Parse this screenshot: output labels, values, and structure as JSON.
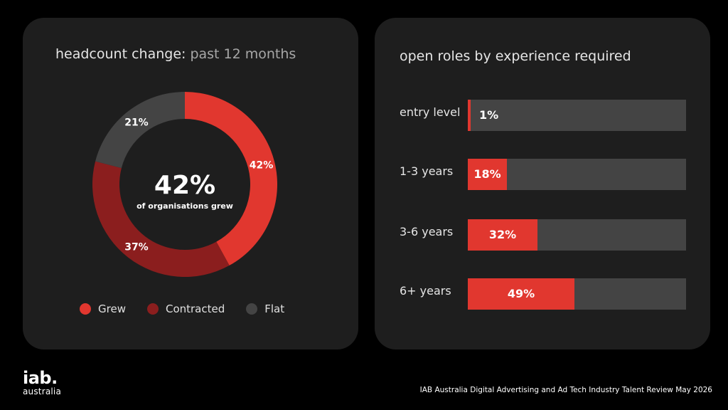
{
  "colors": {
    "page_bg": "#000000",
    "panel_bg": "#1e1e1e",
    "grew": "#e1372f",
    "contracted": "#8b1e1e",
    "flat": "#444444",
    "bar_track": "#444444",
    "bar_fill": "#e1372f"
  },
  "left_panel": {
    "title_main": "headcount change:",
    "title_muted": "past 12 months",
    "center_value": "42%",
    "center_caption": "of organisations grew"
  },
  "right_panel": {
    "title": "open roles by experience required"
  },
  "chart_data": [
    {
      "type": "pie",
      "title": "headcount change: past 12 months",
      "donut": true,
      "center_label": "42%",
      "center_caption": "of organisations grew",
      "categories": [
        "Grew",
        "Contracted",
        "Flat"
      ],
      "values": [
        42,
        37,
        21
      ],
      "labels": [
        "42%",
        "37%",
        "21%"
      ],
      "colors": [
        "#e1372f",
        "#8b1e1e",
        "#444444"
      ],
      "legend": "bottom"
    },
    {
      "type": "bar",
      "orientation": "horizontal",
      "title": "open roles by experience required",
      "categories": [
        "entry level",
        "1-3 years",
        "3-6 years",
        "6+ years"
      ],
      "values": [
        1,
        18,
        32,
        49
      ],
      "labels": [
        "1%",
        "18%",
        "32%",
        "49%"
      ],
      "xlim": [
        0,
        100
      ],
      "color": "#e1372f",
      "track_color": "#444444"
    }
  ],
  "logo": {
    "main": "iab.",
    "sub": "australia"
  },
  "footer": {
    "text": "IAB Australia Digital Advertising and Ad Tech Industry Talent Review May 2026"
  }
}
